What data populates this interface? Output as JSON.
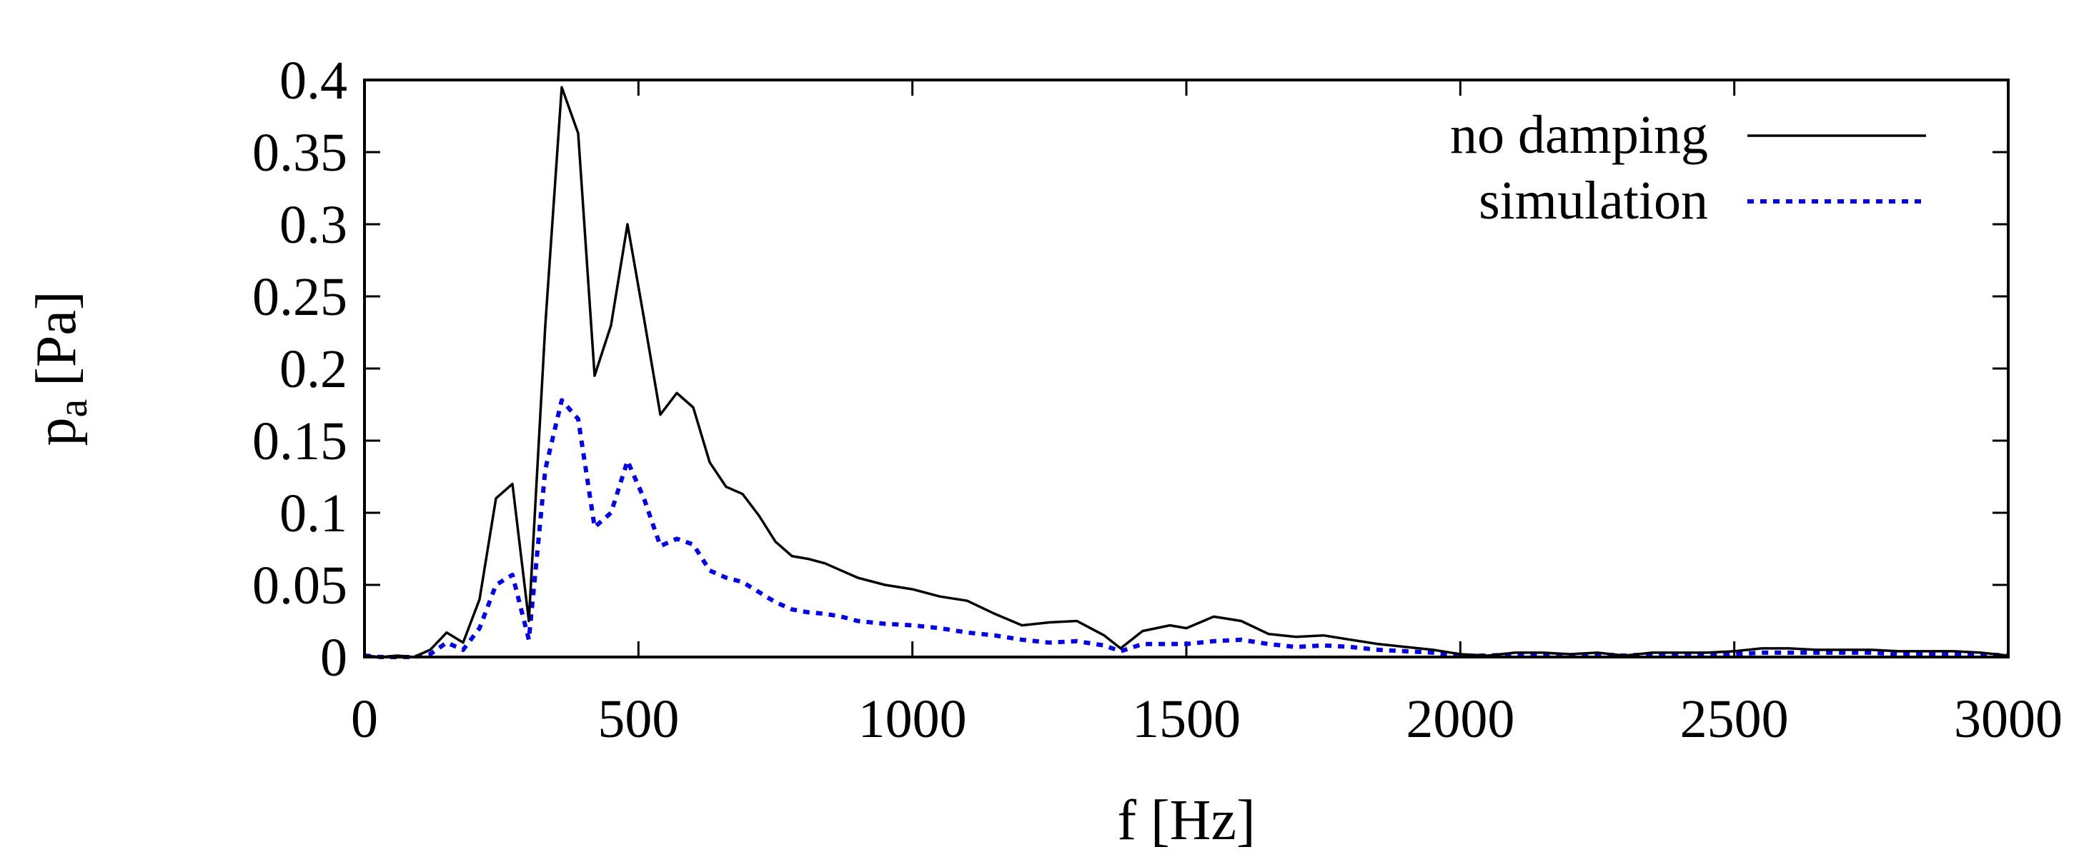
{
  "chart_data": {
    "type": "line",
    "title": "",
    "xlabel": "f [Hz]",
    "ylabel_main": "p",
    "ylabel_sub": "a",
    "ylabel_unit": "[Pa]",
    "xlim": [
      0,
      3000
    ],
    "ylim": [
      0,
      0.4
    ],
    "x_ticks": [
      0,
      500,
      1000,
      1500,
      2000,
      2500,
      3000
    ],
    "x_tick_labels": [
      "0",
      "500",
      "1000",
      "1500",
      "2000",
      "2500",
      "3000"
    ],
    "y_ticks": [
      0,
      0.05,
      0.1,
      0.15,
      0.2,
      0.25,
      0.3,
      0.35,
      0.4
    ],
    "y_tick_labels": [
      "0",
      "0.05",
      "0.1",
      "0.15",
      "0.2",
      "0.25",
      "0.3",
      "0.35",
      "0.4"
    ],
    "grid": false,
    "legend_position": "top-right",
    "series": [
      {
        "name": "no damping",
        "color": "#000000",
        "dash": "solid",
        "x": [
          0,
          30,
          60,
          90,
          120,
          150,
          180,
          210,
          240,
          270,
          300,
          330,
          360,
          390,
          420,
          450,
          480,
          510,
          540,
          570,
          600,
          630,
          660,
          690,
          720,
          750,
          780,
          810,
          840,
          870,
          900,
          950,
          1000,
          1050,
          1100,
          1150,
          1200,
          1250,
          1300,
          1350,
          1380,
          1420,
          1470,
          1500,
          1550,
          1600,
          1650,
          1700,
          1750,
          1800,
          1850,
          1900,
          1950,
          2000,
          2050,
          2100,
          2150,
          2200,
          2250,
          2300,
          2350,
          2400,
          2450,
          2500,
          2550,
          2600,
          2650,
          2700,
          2750,
          2800,
          2850,
          2900,
          2950,
          3000
        ],
        "y": [
          0.001,
          0.0,
          0.001,
          0.0,
          0.005,
          0.017,
          0.01,
          0.04,
          0.11,
          0.12,
          0.025,
          0.23,
          0.395,
          0.363,
          0.195,
          0.23,
          0.3,
          0.235,
          0.168,
          0.183,
          0.173,
          0.135,
          0.118,
          0.113,
          0.098,
          0.08,
          0.07,
          0.068,
          0.065,
          0.06,
          0.055,
          0.05,
          0.047,
          0.042,
          0.039,
          0.03,
          0.022,
          0.024,
          0.025,
          0.015,
          0.006,
          0.018,
          0.022,
          0.02,
          0.028,
          0.025,
          0.016,
          0.014,
          0.015,
          0.012,
          0.009,
          0.007,
          0.005,
          0.002,
          0.001,
          0.003,
          0.003,
          0.002,
          0.003,
          0.001,
          0.003,
          0.003,
          0.003,
          0.004,
          0.006,
          0.006,
          0.005,
          0.005,
          0.005,
          0.004,
          0.004,
          0.004,
          0.003,
          0.001
        ]
      },
      {
        "name": "simulation",
        "color": "#0000ee",
        "dash": "dotted",
        "x": [
          0,
          30,
          60,
          90,
          120,
          150,
          180,
          210,
          240,
          270,
          300,
          330,
          360,
          390,
          420,
          450,
          480,
          510,
          540,
          570,
          600,
          630,
          660,
          690,
          720,
          750,
          780,
          810,
          840,
          870,
          900,
          950,
          1000,
          1050,
          1100,
          1150,
          1200,
          1250,
          1300,
          1350,
          1380,
          1420,
          1470,
          1500,
          1550,
          1600,
          1650,
          1700,
          1750,
          1800,
          1850,
          1900,
          1950,
          2000,
          2050,
          2100,
          2150,
          2200,
          2250,
          2300,
          2350,
          2400,
          2450,
          2500,
          2550,
          2600,
          2650,
          2700,
          2750,
          2800,
          2850,
          2900,
          2950,
          3000
        ],
        "y": [
          0.001,
          0.0,
          0.0,
          0.0,
          0.002,
          0.01,
          0.005,
          0.02,
          0.05,
          0.057,
          0.012,
          0.13,
          0.178,
          0.165,
          0.09,
          0.1,
          0.136,
          0.11,
          0.077,
          0.082,
          0.078,
          0.06,
          0.055,
          0.052,
          0.045,
          0.038,
          0.033,
          0.031,
          0.03,
          0.028,
          0.025,
          0.023,
          0.022,
          0.02,
          0.017,
          0.015,
          0.012,
          0.01,
          0.011,
          0.008,
          0.004,
          0.009,
          0.009,
          0.009,
          0.011,
          0.012,
          0.009,
          0.007,
          0.008,
          0.007,
          0.005,
          0.004,
          0.003,
          0.001,
          0.001,
          0.002,
          0.002,
          0.001,
          0.002,
          0.001,
          0.002,
          0.002,
          0.002,
          0.002,
          0.003,
          0.003,
          0.003,
          0.003,
          0.003,
          0.002,
          0.002,
          0.002,
          0.002,
          0.001
        ]
      }
    ]
  }
}
